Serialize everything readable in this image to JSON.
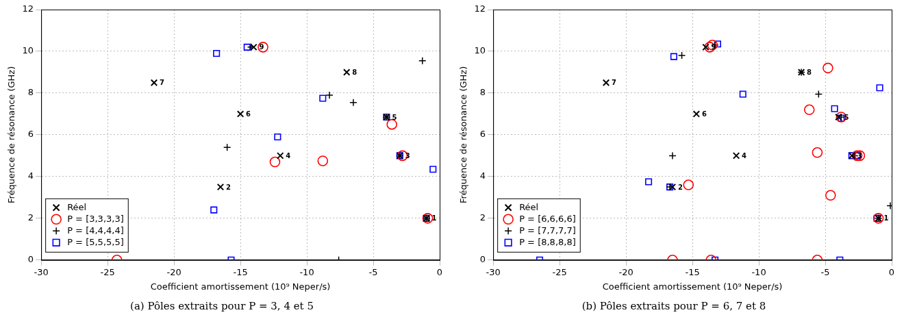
{
  "chart_data": [
    {
      "type": "scatter",
      "title": "(a) Pôles extraits pour P = 3, 4 et 5",
      "x_label": "Coefficient amortissement (10⁹ Neper/s)",
      "y_label": "Fréquence de résonance (GHz)",
      "xlim": [
        -30,
        0
      ],
      "xticks": [
        -30,
        -25,
        -20,
        -15,
        -10,
        -5,
        0
      ],
      "ylim": [
        0,
        12
      ],
      "yticks": [
        0,
        2,
        4,
        6,
        8,
        10,
        12
      ],
      "grid": true,
      "legend": "lower left",
      "series": [
        {
          "name": "Réel",
          "color": "#000000",
          "marker": "x",
          "x": [
            -1,
            -16.5,
            -3,
            -12,
            -4,
            -15,
            -21.5,
            -7,
            -14
          ],
          "y": [
            2,
            3.5,
            5,
            5,
            6.85,
            7,
            8.5,
            9,
            10.2
          ],
          "labels": [
            "1",
            "2",
            "3",
            "4",
            "5",
            "6",
            "7",
            "8",
            "9"
          ]
        },
        {
          "name": "P = [3,3,3,3]",
          "color": "#ff0000",
          "marker": "circle",
          "x": [
            -24.3,
            -13.3,
            -12.4,
            -8.8,
            -3.6,
            -2.8,
            -0.9
          ],
          "y": [
            0,
            10.2,
            4.7,
            4.75,
            6.5,
            5,
            2
          ]
        },
        {
          "name": "P = [4,4,4,4]",
          "color": "#000000",
          "marker": "plus",
          "x": [
            -14.2,
            -16,
            -8.3,
            -6.5,
            -7.6,
            -1.3,
            -4,
            -3,
            -1
          ],
          "y": [
            10.2,
            5.4,
            7.9,
            7.55,
            0,
            9.55,
            6.85,
            5,
            2
          ]
        },
        {
          "name": "P = [5,5,5,5]",
          "color": "#0000ff",
          "marker": "square",
          "x": [
            -16.8,
            -14.5,
            -8.8,
            -12.2,
            -17,
            -15.7,
            -4,
            -3,
            -0.5,
            -1
          ],
          "y": [
            9.9,
            10.2,
            7.75,
            5.9,
            2.4,
            0,
            6.85,
            5,
            4.35,
            2
          ]
        }
      ]
    },
    {
      "type": "scatter",
      "title": "(b) Pôles extraits pour P = 6, 7 et 8",
      "x_label": "Coefficient amortissement (10⁹ Neper/s)",
      "y_label": "Fréquence de résonance (GHz)",
      "xlim": [
        -30,
        0
      ],
      "xticks": [
        -30,
        -25,
        -20,
        -15,
        -10,
        -5,
        0
      ],
      "ylim": [
        0,
        12
      ],
      "yticks": [
        0,
        2,
        4,
        6,
        8,
        10,
        12
      ],
      "grid": true,
      "legend": "lower left",
      "series": [
        {
          "name": "Réel",
          "color": "#000000",
          "marker": "x",
          "x": [
            -1,
            -16.5,
            -3,
            -11.7,
            -4,
            -14.7,
            -21.5,
            -6.8,
            -14
          ],
          "y": [
            2,
            3.5,
            5,
            5,
            6.85,
            7,
            8.5,
            9,
            10.2
          ],
          "labels": [
            "1",
            "2",
            "3",
            "4",
            "5",
            "6",
            "7",
            "8",
            "9"
          ]
        },
        {
          "name": "P = [6,6,6,6]",
          "color": "#ff0000",
          "marker": "circle",
          "x": [
            -13.5,
            -13.7,
            -4.8,
            -6.2,
            -3.8,
            -5.6,
            -4.6,
            -2.6,
            -2.4,
            -15.3,
            -16.5,
            -13.6,
            -5.6,
            -1
          ],
          "y": [
            10.3,
            10.2,
            9.2,
            7.2,
            6.85,
            5.15,
            3.1,
            5,
            5,
            3.6,
            0,
            0,
            0,
            2
          ]
        },
        {
          "name": "P = [7,7,7,7]",
          "color": "#000000",
          "marker": "plus",
          "x": [
            -15.8,
            -13.3,
            -5.5,
            -6.8,
            -3.8,
            -16.5,
            -2.8,
            -16.7,
            -0.1,
            -1
          ],
          "y": [
            9.8,
            10.3,
            7.95,
            9,
            6.85,
            5,
            5,
            3.5,
            2.6,
            2
          ]
        },
        {
          "name": "P = [8,8,8,8]",
          "color": "#0000ff",
          "marker": "square",
          "x": [
            -16.4,
            -13.1,
            -11.2,
            -4.3,
            -3.8,
            -0.9,
            -3,
            -2.6,
            -18.3,
            -16.7,
            -26.5,
            -13.3,
            -3.9,
            -1.1
          ],
          "y": [
            9.75,
            10.35,
            7.95,
            7.25,
            6.8,
            8.25,
            5,
            5,
            3.75,
            3.5,
            0,
            0,
            0,
            2
          ]
        }
      ]
    }
  ]
}
